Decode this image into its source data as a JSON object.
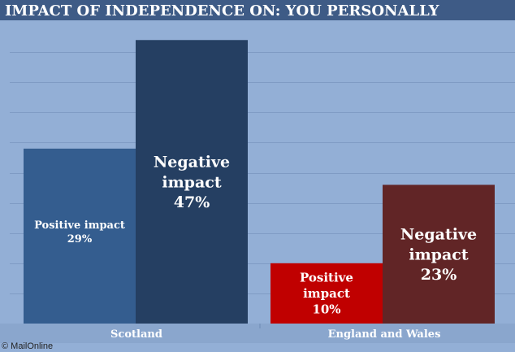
{
  "colors": {
    "title_bg": "#3e5b86",
    "plot_bg": "#93afd6",
    "gridline": "#7f9bc4",
    "axis_band": "#8aa6cd"
  },
  "credit": "© MailOnline",
  "chart_data": {
    "type": "bar",
    "title": "IMPACT OF INDEPENDENCE ON: YOU PERSONALLY",
    "categories": [
      "Scotland",
      "England and Wales"
    ],
    "ylim": [
      0,
      50
    ],
    "grid": true,
    "series": [
      {
        "name": "Positive impact",
        "values": [
          29,
          10
        ],
        "colors": [
          "#345d8f",
          "#c00000"
        ],
        "labels": [
          [
            "Positive impact",
            "29%"
          ],
          [
            "Positive",
            "impact",
            "10%"
          ]
        ]
      },
      {
        "name": "Negative impact",
        "values": [
          47,
          23
        ],
        "colors": [
          "#253f62",
          "#612526"
        ],
        "labels": [
          [
            "Negative",
            "impact",
            "47%"
          ],
          [
            "Negative",
            "impact",
            "23%"
          ]
        ]
      }
    ]
  }
}
